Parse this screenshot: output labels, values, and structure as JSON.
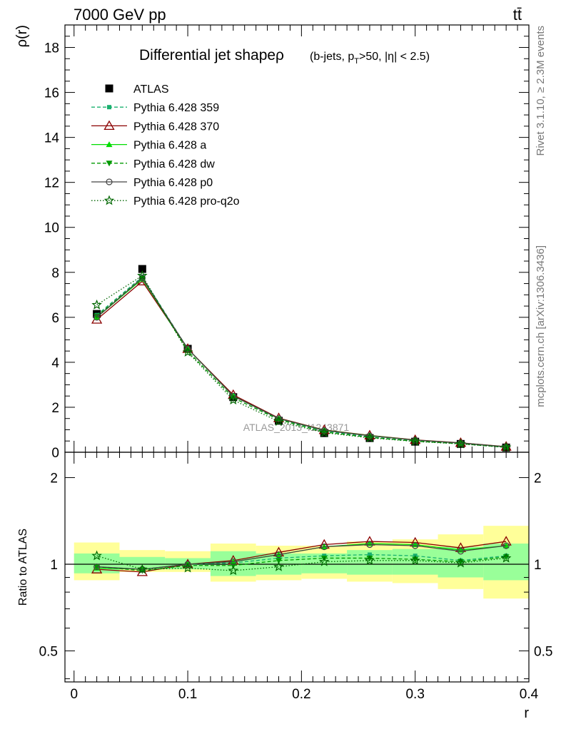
{
  "header": {
    "left": "7000 GeV pp",
    "right": "tt̄"
  },
  "side_labels": {
    "rivet": "Rivet 3.1.10, ≥ 2.3M events",
    "mcplots": "mcplots.cern.ch [arXiv:1306.3436]"
  },
  "watermark": "ATLAS_2013_I1243871",
  "chart_data": [
    {
      "type": "line",
      "panel": "main",
      "title": "Differential jet shapeρ",
      "subtitle": "(b-jets, p_T>50, |η| < 2.5)",
      "xlabel": "",
      "ylabel": "ρ(r)",
      "xlim": [
        -0.008,
        0.4
      ],
      "ylim": [
        0,
        19
      ],
      "x_ticks": [
        0,
        0.1,
        0.2,
        0.3,
        0.4
      ],
      "y_ticks": [
        0,
        2,
        4,
        6,
        8,
        10,
        12,
        14,
        16,
        18
      ],
      "y_tick_labels": [
        "0",
        "2",
        "4",
        "6",
        "8",
        "10",
        "12",
        "14",
        "16",
        "18"
      ],
      "x": [
        0.02,
        0.06,
        0.1,
        0.14,
        0.18,
        0.22,
        0.26,
        0.3,
        0.34,
        0.38
      ],
      "series": [
        {
          "name": "ATLAS",
          "color": "#000000",
          "marker": "square",
          "line": "none",
          "values": [
            6.15,
            8.15,
            4.6,
            2.45,
            1.4,
            0.85,
            0.63,
            0.47,
            0.37,
            0.21
          ]
        },
        {
          "name": "Pythia 6.428 359",
          "color": "#19b06f",
          "marker": "small-square",
          "line": "dashed",
          "values": [
            6.1,
            7.8,
            4.6,
            2.5,
            1.48,
            0.95,
            0.68,
            0.5,
            0.38,
            0.22
          ]
        },
        {
          "name": "Pythia 6.428 370",
          "color": "#8b0000",
          "marker": "open-triangle",
          "line": "solid",
          "values": [
            5.9,
            7.6,
            4.6,
            2.55,
            1.52,
            0.99,
            0.75,
            0.55,
            0.42,
            0.25
          ]
        },
        {
          "name": "Pythia 6.428 a",
          "color": "#00dd00",
          "marker": "filled-triangle",
          "line": "solid",
          "values": [
            6.0,
            7.7,
            4.6,
            2.5,
            1.5,
            0.98,
            0.74,
            0.54,
            0.41,
            0.24
          ]
        },
        {
          "name": "Pythia 6.428 dw",
          "color": "#009900",
          "marker": "filled-inv-triangle",
          "line": "dashed",
          "values": [
            6.05,
            7.75,
            4.5,
            2.42,
            1.45,
            0.9,
            0.66,
            0.49,
            0.38,
            0.22
          ]
        },
        {
          "name": "Pythia 6.428 p0",
          "color": "#444444",
          "marker": "open-circle",
          "line": "solid",
          "values": [
            6.0,
            7.75,
            4.6,
            2.5,
            1.5,
            0.97,
            0.73,
            0.54,
            0.41,
            0.24
          ]
        },
        {
          "name": "Pythia 6.428 pro-q2o",
          "color": "#006600",
          "marker": "open-star",
          "line": "dotted",
          "values": [
            6.55,
            7.85,
            4.45,
            2.32,
            1.37,
            0.87,
            0.64,
            0.48,
            0.37,
            0.22
          ]
        }
      ]
    },
    {
      "type": "line",
      "panel": "ratio",
      "xlabel": "r",
      "ylabel": "Ratio to ATLAS",
      "xlim": [
        -0.008,
        0.4
      ],
      "ylim": [
        0.39,
        2.45
      ],
      "y_ticks": [
        0.5,
        1,
        2
      ],
      "y_tick_labels": [
        "0.5",
        "1",
        "2"
      ],
      "x_ticks": [
        0,
        0.1,
        0.2,
        0.3,
        0.4
      ],
      "x_tick_labels": [
        "0",
        "0.1",
        "0.2",
        "0.3",
        "0.4"
      ],
      "x": [
        0.02,
        0.06,
        0.1,
        0.14,
        0.18,
        0.22,
        0.26,
        0.3,
        0.34,
        0.38
      ],
      "bands": {
        "bin_edges": [
          0.0,
          0.04,
          0.08,
          0.12,
          0.16,
          0.2,
          0.24,
          0.28,
          0.32,
          0.36,
          0.4
        ],
        "outer": {
          "color": "#ffff99",
          "low": [
            0.88,
            0.94,
            0.94,
            0.87,
            0.88,
            0.89,
            0.87,
            0.86,
            0.82,
            0.76
          ],
          "high": [
            1.19,
            1.12,
            1.11,
            1.18,
            1.16,
            1.16,
            1.2,
            1.22,
            1.27,
            1.36
          ]
        },
        "inner": {
          "color": "#99ff99",
          "low": [
            0.93,
            0.96,
            0.96,
            0.91,
            0.92,
            0.93,
            0.92,
            0.92,
            0.9,
            0.88
          ],
          "high": [
            1.09,
            1.06,
            1.05,
            1.11,
            1.09,
            1.09,
            1.12,
            1.13,
            1.15,
            1.18
          ]
        }
      },
      "series": [
        {
          "name": "Pythia 6.428 359",
          "color": "#19b06f",
          "marker": "small-square",
          "line": "dashed",
          "values": [
            0.98,
            0.96,
            1.0,
            1.01,
            1.05,
            1.07,
            1.08,
            1.07,
            1.03,
            1.07
          ]
        },
        {
          "name": "Pythia 6.428 370",
          "color": "#8b0000",
          "marker": "open-triangle",
          "line": "solid",
          "values": [
            0.96,
            0.94,
            1.0,
            1.03,
            1.1,
            1.17,
            1.2,
            1.19,
            1.14,
            1.2
          ]
        },
        {
          "name": "Pythia 6.428 a",
          "color": "#00dd00",
          "marker": "filled-triangle",
          "line": "solid",
          "values": [
            0.97,
            0.96,
            1.0,
            1.02,
            1.08,
            1.15,
            1.18,
            1.17,
            1.12,
            1.16
          ]
        },
        {
          "name": "Pythia 6.428 dw",
          "color": "#009900",
          "marker": "filled-inv-triangle",
          "line": "dashed",
          "values": [
            0.98,
            0.95,
            0.99,
            0.99,
            1.03,
            1.05,
            1.05,
            1.04,
            1.02,
            1.06
          ]
        },
        {
          "name": "Pythia 6.428 p0",
          "color": "#444444",
          "marker": "open-circle",
          "line": "solid",
          "values": [
            0.98,
            0.96,
            1.0,
            1.02,
            1.08,
            1.15,
            1.17,
            1.16,
            1.11,
            1.16
          ]
        },
        {
          "name": "Pythia 6.428 pro-q2o",
          "color": "#006600",
          "marker": "open-star",
          "line": "dotted",
          "values": [
            1.07,
            0.96,
            0.97,
            0.95,
            0.98,
            1.02,
            1.03,
            1.03,
            1.01,
            1.05
          ]
        }
      ]
    }
  ]
}
